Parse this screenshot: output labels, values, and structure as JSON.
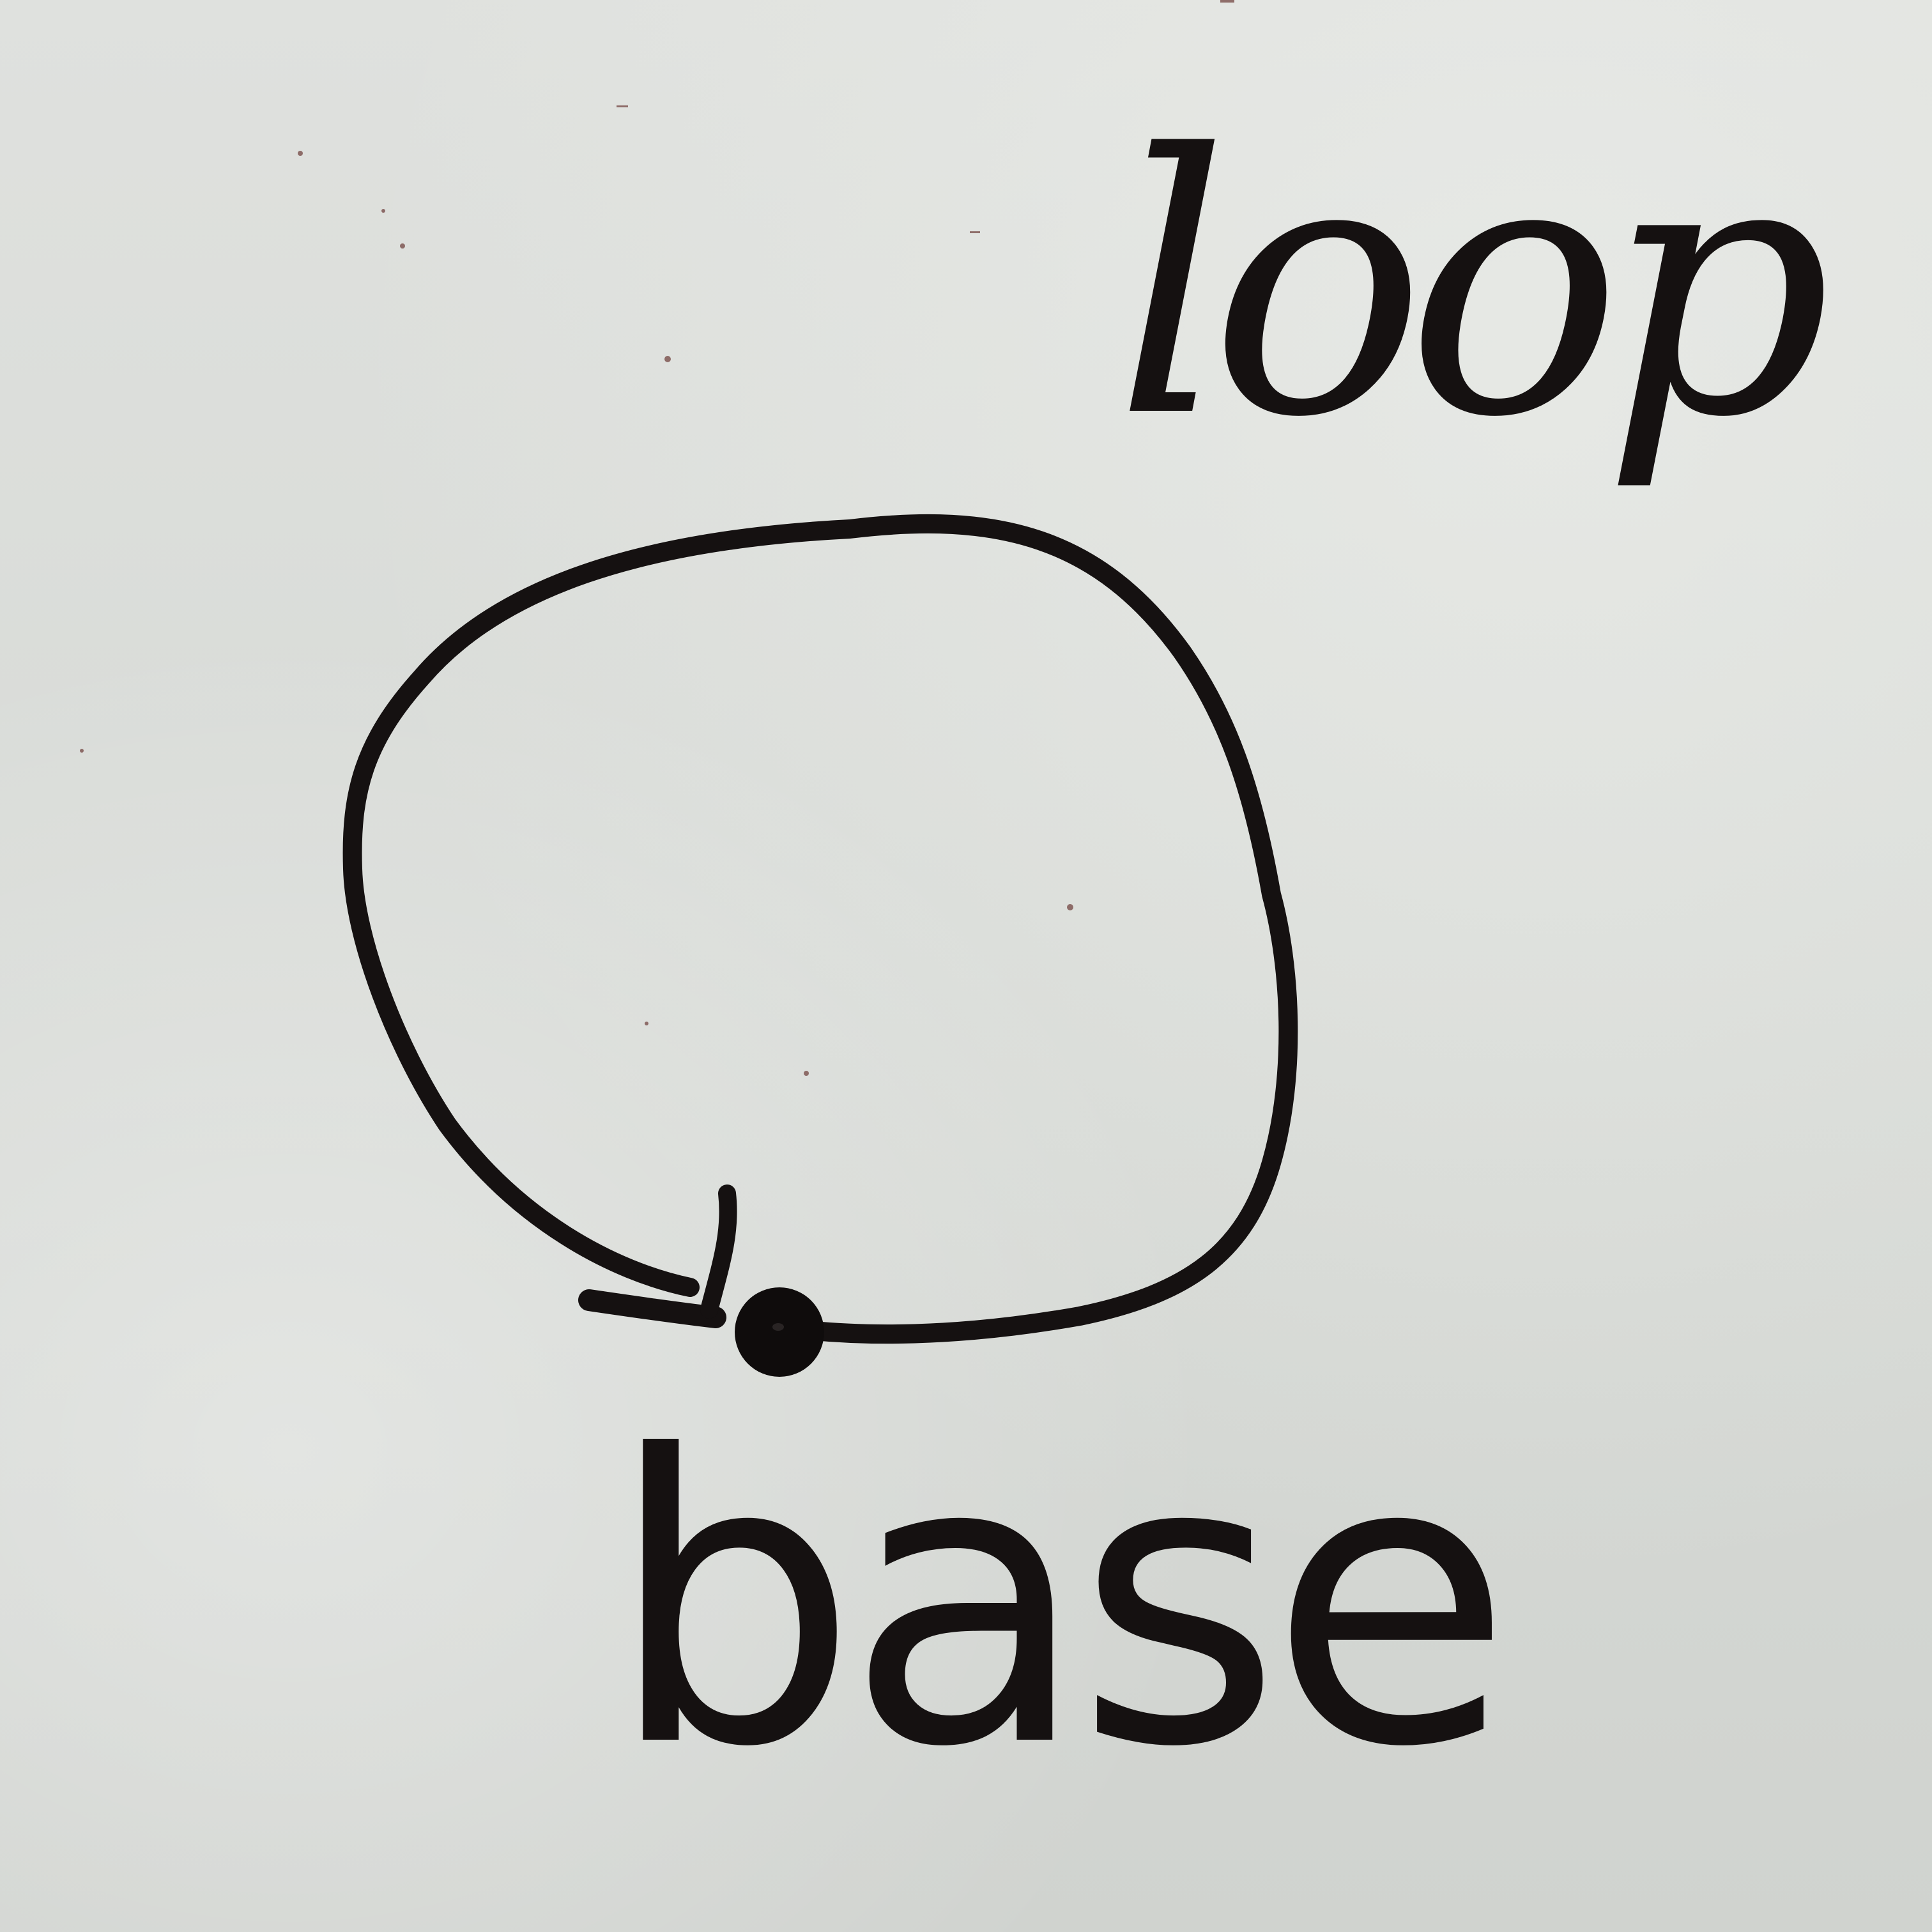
{
  "labels": {
    "loop": "loop",
    "base": "base"
  },
  "colors": {
    "board": "#dcdfdb",
    "ink": "#151111"
  },
  "drawing": {
    "shape": "closed loop",
    "marker_icon": "filled-dot-icon"
  }
}
